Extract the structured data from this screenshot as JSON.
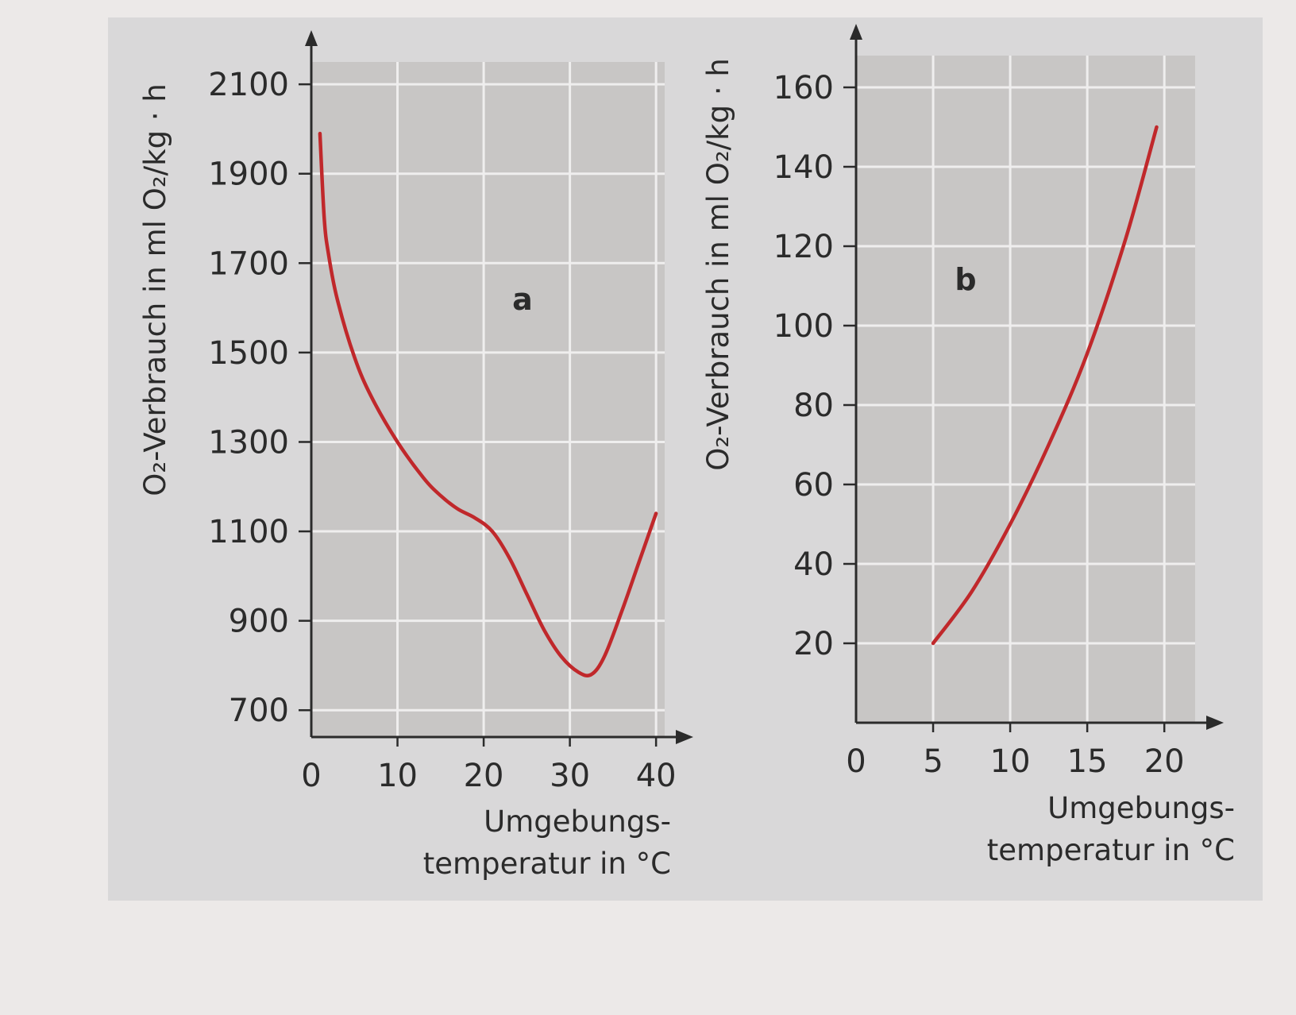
{
  "chart_data": [
    {
      "type": "line",
      "panel_label": "a",
      "ylabel": "O₂-Verbrauch in ml O₂/kg · h",
      "xlabel_line1": "Umgebungs-",
      "xlabel_line2": "temperatur in °C",
      "x_ticks": [
        "0",
        "10",
        "20",
        "30",
        "40"
      ],
      "y_ticks": [
        "700",
        "900",
        "1100",
        "1300",
        "1500",
        "1700",
        "1900",
        "2100"
      ],
      "xlim": [
        0,
        41
      ],
      "ylim": [
        640,
        2150
      ],
      "grid": true,
      "series": [
        {
          "color": "#c0282b",
          "x": [
            1,
            1.5,
            2,
            3,
            5,
            7,
            10,
            13,
            15,
            17,
            19,
            21,
            23,
            25,
            27,
            29,
            31,
            32.5,
            34,
            36,
            38,
            40
          ],
          "y": [
            1990,
            1800,
            1720,
            1620,
            1490,
            1400,
            1300,
            1220,
            1180,
            1150,
            1130,
            1100,
            1040,
            960,
            880,
            820,
            785,
            780,
            820,
            920,
            1030,
            1140
          ]
        }
      ]
    },
    {
      "type": "line",
      "panel_label": "b",
      "ylabel": "O₂-Verbrauch in ml O₂/kg · h",
      "xlabel_line1": "Umgebungs-",
      "xlabel_line2": "temperatur in °C",
      "x_ticks": [
        "0",
        "5",
        "10",
        "15",
        "20"
      ],
      "y_ticks": [
        "20",
        "40",
        "60",
        "80",
        "100",
        "120",
        "140",
        "160"
      ],
      "xlim": [
        0,
        22
      ],
      "ylim": [
        0,
        168
      ],
      "grid": true,
      "series": [
        {
          "color": "#c0282b",
          "x": [
            5,
            7.5,
            10,
            12.5,
            15,
            17.5,
            19.5
          ],
          "y": [
            20,
            33,
            50,
            70,
            93,
            122,
            150
          ]
        }
      ]
    }
  ]
}
